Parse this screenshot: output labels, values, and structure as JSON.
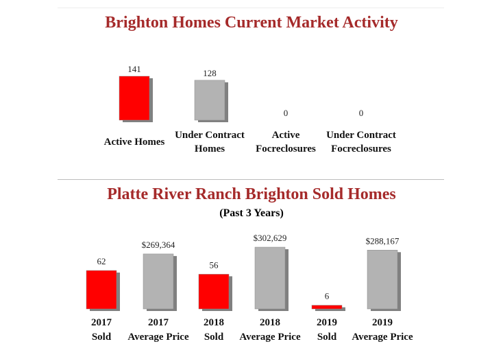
{
  "market": {
    "title": "Brighton Homes Current Market Activity"
  },
  "sold": {
    "title": "Platte River Ranch Brighton Sold Homes",
    "subtitle": "(Past 3 Years)"
  },
  "colors": {
    "title": "#a52a2a",
    "red_bar": "#ff0000",
    "gray_bar": "#b3b3b3",
    "shadow": "#555555"
  },
  "chart_data": [
    {
      "type": "bar",
      "title": "Brighton Homes Current Market Activity",
      "categories": [
        [
          "Active Homes"
        ],
        [
          "Under Contract",
          "Homes"
        ],
        [
          "Active",
          "Focreclosures"
        ],
        [
          "Under Contract",
          "Focreclosures"
        ]
      ],
      "values": [
        141,
        128,
        0,
        0
      ],
      "value_labels": [
        "141",
        "128",
        "0",
        "0"
      ],
      "colors": [
        "#ff0000",
        "#b3b3b3",
        "#ff0000",
        "#b3b3b3"
      ],
      "xlabel": "",
      "ylabel": "",
      "grid": false
    },
    {
      "type": "bar",
      "title": "Platte River Ranch Brighton Sold Homes",
      "subtitle": "(Past 3 Years)",
      "categories": [
        [
          "2017",
          "Sold"
        ],
        [
          "2017",
          "Average Price"
        ],
        [
          "2018",
          "Sold"
        ],
        [
          "2018",
          "Average Price"
        ],
        [
          "2019",
          "Sold"
        ],
        [
          "2019",
          "Average Price"
        ]
      ],
      "values": [
        62,
        269364,
        56,
        302629,
        6,
        288167
      ],
      "value_labels": [
        "62",
        "$269,364",
        "56",
        "$302,629",
        "6",
        "$288,167"
      ],
      "colors": [
        "#ff0000",
        "#b3b3b3",
        "#ff0000",
        "#b3b3b3",
        "#ff0000",
        "#b3b3b3"
      ],
      "xlabel": "",
      "ylabel": "",
      "grid": false
    }
  ]
}
